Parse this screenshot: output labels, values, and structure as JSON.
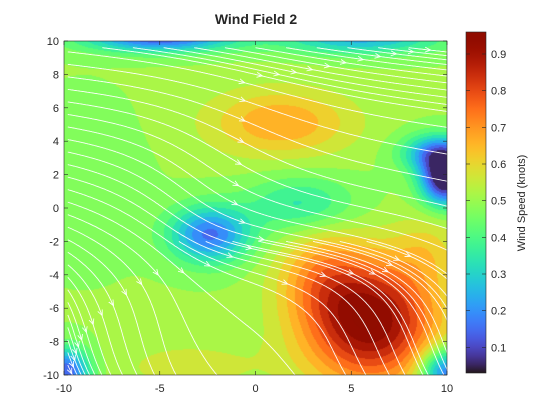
{
  "chart_data": {
    "type": "heatmap",
    "subtype": "filled contour with streamlines",
    "title": "Wind Field 2",
    "xlabel": "",
    "ylabel": "",
    "xlim": [
      -10,
      10
    ],
    "ylim": [
      -10,
      10
    ],
    "x_ticks": [
      -10,
      -5,
      0,
      5,
      10
    ],
    "y_ticks": [
      -10,
      -8,
      -6,
      -4,
      -2,
      0,
      2,
      4,
      6,
      8,
      10
    ],
    "x_tick_labels": [
      "-10",
      "-5",
      "0",
      "5",
      "10"
    ],
    "y_tick_labels": [
      "-10",
      "-8",
      "-6",
      "-4",
      "-2",
      "0",
      "2",
      "4",
      "6",
      "8",
      "10"
    ],
    "grid": false,
    "colormap": "turbo",
    "colorbar": {
      "label": "Wind Speed (knots)",
      "range": [
        0.03,
        0.96
      ],
      "ticks": [
        0.1,
        0.2,
        0.3,
        0.4,
        0.5,
        0.6,
        0.7,
        0.8,
        0.9
      ],
      "tick_labels": [
        "0.1",
        "0.2",
        "0.3",
        "0.4",
        "0.5",
        "0.6",
        "0.7",
        "0.8",
        "0.9"
      ],
      "position": "right"
    },
    "speed_field": {
      "background": 0.5,
      "features": [
        {
          "kind": "high",
          "x": 6.0,
          "y": -6.8,
          "amp": 0.46,
          "sx": 2.4,
          "sy": 2.6
        },
        {
          "kind": "high",
          "x": 3.4,
          "y": -4.0,
          "amp": 0.14,
          "sx": 1.6,
          "sy": 2.0
        },
        {
          "kind": "high",
          "x": 1.3,
          "y": 5.1,
          "amp": 0.18,
          "sx": 2.6,
          "sy": 1.4
        },
        {
          "kind": "high",
          "x": -3.5,
          "y": -9.5,
          "amp": 0.06,
          "sx": 3.0,
          "sy": 1.2
        },
        {
          "kind": "high",
          "x": 9.0,
          "y": -2.5,
          "amp": 0.08,
          "sx": 1.2,
          "sy": 1.5
        },
        {
          "kind": "low",
          "x": -2.4,
          "y": -1.6,
          "amp": 0.34,
          "sx": 1.5,
          "sy": 1.2
        },
        {
          "kind": "low",
          "x": 2.4,
          "y": 0.2,
          "amp": 0.16,
          "sx": 2.0,
          "sy": 1.2
        },
        {
          "kind": "low",
          "x": 9.9,
          "y": 1.7,
          "amp": 0.5,
          "sx": 0.9,
          "sy": 1.1
        },
        {
          "kind": "low",
          "x": 9.5,
          "y": 3.3,
          "amp": 0.3,
          "sx": 1.3,
          "sy": 0.8
        },
        {
          "kind": "low",
          "x": -5.0,
          "y": 10.2,
          "amp": 0.38,
          "sx": 2.8,
          "sy": 0.6
        },
        {
          "kind": "low",
          "x": 5.5,
          "y": 10.2,
          "amp": 0.26,
          "sx": 3.0,
          "sy": 0.7
        },
        {
          "kind": "low",
          "x": -9.9,
          "y": -9.8,
          "amp": 0.38,
          "sx": 0.9,
          "sy": 1.0
        },
        {
          "kind": "low",
          "x": 9.9,
          "y": -9.8,
          "amp": 0.36,
          "sx": 0.9,
          "sy": 1.0
        },
        {
          "kind": "low",
          "x": -9.0,
          "y": 1.5,
          "amp": 0.05,
          "sx": 2.0,
          "sy": 3.0
        }
      ]
    },
    "flow_field": {
      "streamlines": "white",
      "saddle": {
        "x": -0.3,
        "y": -0.8
      },
      "description": "westerly flow turning southward toward bottom edge"
    }
  }
}
